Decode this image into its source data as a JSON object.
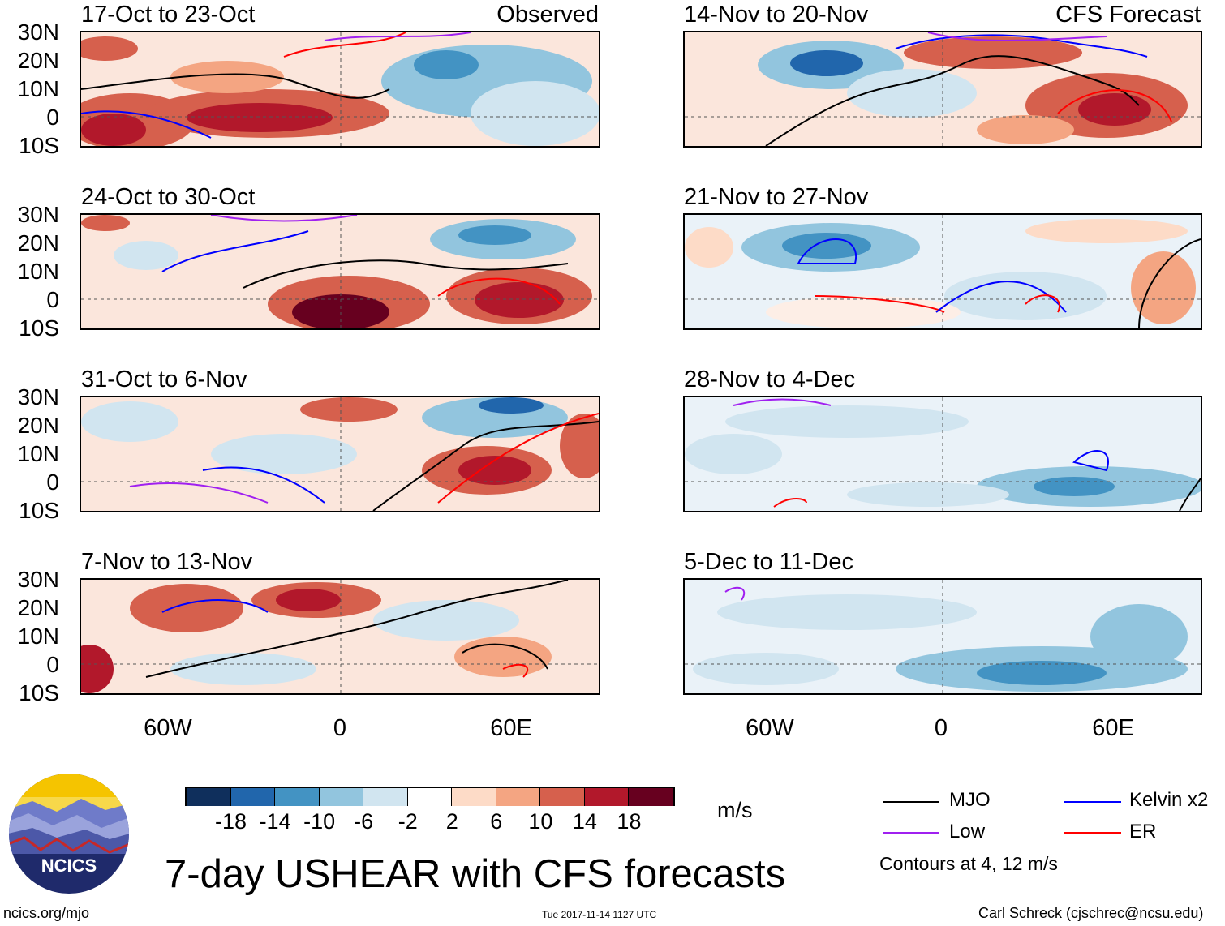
{
  "panels": [
    {
      "title": "17-Oct to 23-Oct",
      "tag": "Observed"
    },
    {
      "title": "14-Nov to 20-Nov",
      "tag": "CFS Forecast"
    },
    {
      "title": "24-Oct to 30-Oct",
      "tag": ""
    },
    {
      "title": "21-Nov to 27-Nov",
      "tag": ""
    },
    {
      "title": "31-Oct to 6-Nov",
      "tag": ""
    },
    {
      "title": "28-Nov to 4-Dec",
      "tag": ""
    },
    {
      "title": "7-Nov to 13-Nov",
      "tag": ""
    },
    {
      "title": "5-Dec to 11-Dec",
      "tag": ""
    }
  ],
  "lat_labels": [
    "30N",
    "20N",
    "10N",
    "0",
    "10S"
  ],
  "lon_labels": [
    "60W",
    "0",
    "60E"
  ],
  "colorbar": {
    "ticks": [
      "-18",
      "-14",
      "-10",
      "-6",
      "-2",
      "2",
      "6",
      "10",
      "14",
      "18"
    ],
    "unit": "m/s",
    "colors": [
      "#0f2f5c",
      "#2166ac",
      "#4393c3",
      "#92c5de",
      "#d1e5f0",
      "#ffffff",
      "#fddbc7",
      "#f4a582",
      "#d6604d",
      "#b2182b",
      "#67001f"
    ]
  },
  "legend": {
    "items": [
      {
        "label": "MJO",
        "color": "#000000"
      },
      {
        "label": "Kelvin x2",
        "color": "#0000ff"
      },
      {
        "label": "Low",
        "color": "#a020f0"
      },
      {
        "label": "ER",
        "color": "#ff0000"
      }
    ],
    "note": "Contours at 4, 12 m/s"
  },
  "logo_text": "NCICS",
  "main_title": "7-day USHEAR with CFS forecasts",
  "footer": {
    "left": "ncics.org/mjo",
    "center": "Tue 2017-11-14 1127 UTC",
    "right": "Carl Schreck (cjschrec@ncsu.edu)"
  }
}
